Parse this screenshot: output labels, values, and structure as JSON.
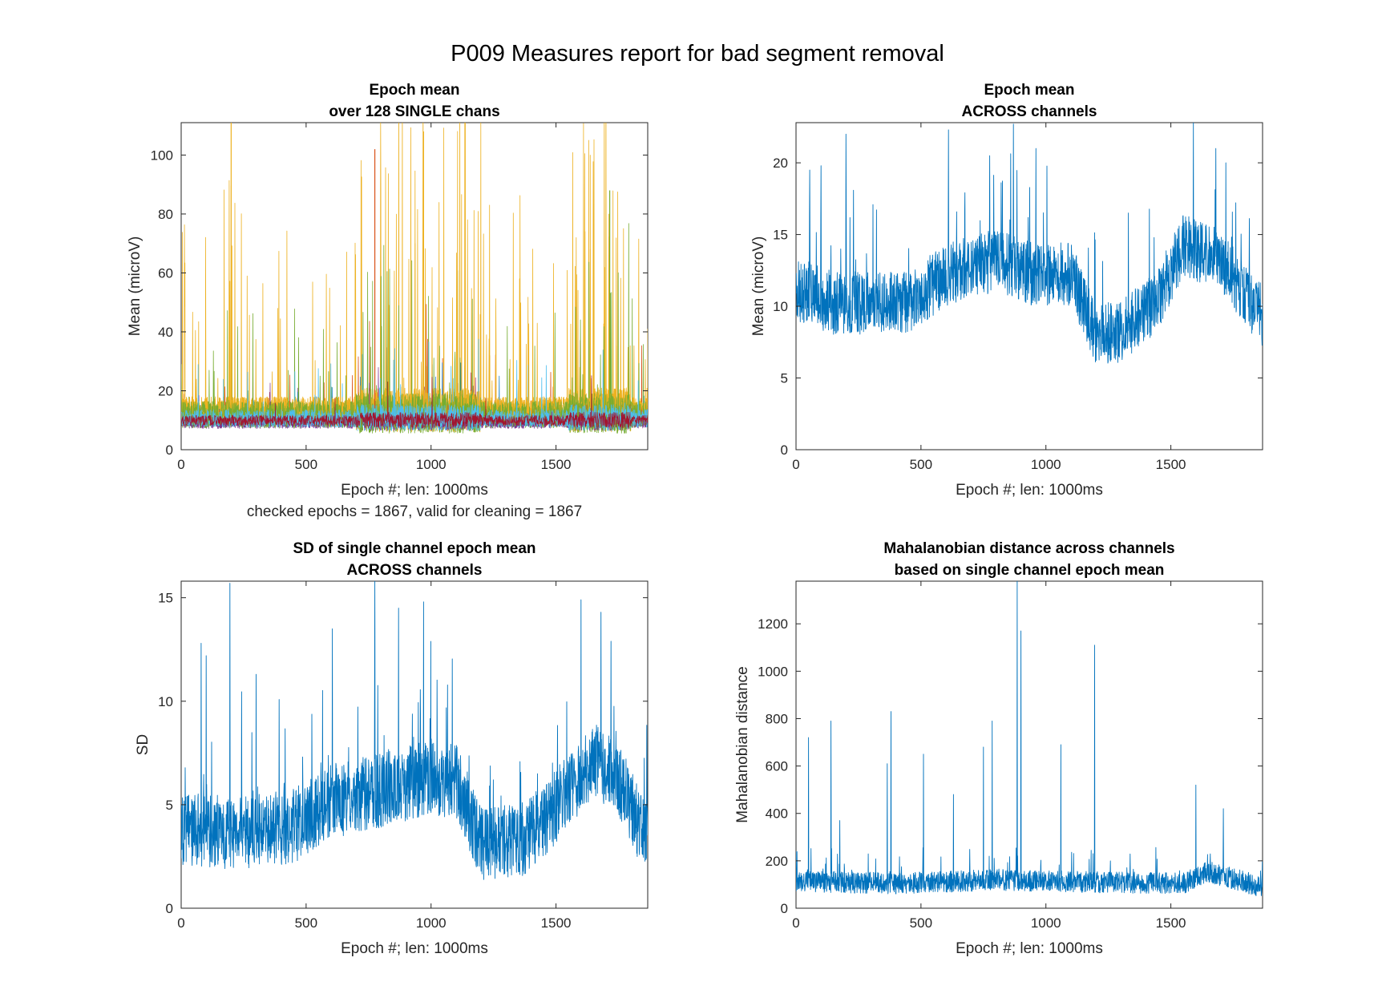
{
  "figure_title": "P009 Measures report for bad segment removal",
  "colors": {
    "series_blue": "#0072BD",
    "matlab_order": [
      "#0072BD",
      "#D95319",
      "#EDB120",
      "#7E2F8E",
      "#77AC30",
      "#4DBEEE",
      "#A2142F"
    ]
  },
  "chart_data": [
    {
      "type": "line",
      "id": "p1",
      "title": [
        "Epoch mean",
        "over 128 SINGLE chans"
      ],
      "xlabel": "Epoch #; len: 1000ms",
      "xlabel_note": "checked epochs = 1867, valid for cleaning = 1867",
      "ylabel": "Mean (microV)",
      "xlim": [
        0,
        1867
      ],
      "ylim": [
        0,
        111
      ],
      "xticks": [
        0,
        500,
        1000,
        1500
      ],
      "yticks": [
        0,
        20,
        40,
        60,
        80,
        100
      ],
      "n_epochs": 1867,
      "n_series": 128,
      "series_summary": {
        "typical_range": [
          5,
          20
        ],
        "peak_max": 111,
        "notable_peaks": [
          [
            200,
            111
          ],
          [
            775,
            102
          ],
          [
            970,
            108
          ],
          [
            1715,
            88
          ]
        ]
      }
    },
    {
      "type": "line",
      "id": "p2",
      "title": [
        "Epoch mean",
        "ACROSS channels"
      ],
      "xlabel": "Epoch #; len: 1000ms",
      "ylabel": "Mean (microV)",
      "xlim": [
        0,
        1867
      ],
      "ylim": [
        0,
        22.8
      ],
      "xticks": [
        0,
        500,
        1000,
        1500
      ],
      "yticks": [
        0,
        5,
        10,
        15,
        20
      ],
      "levels": [
        [
          0,
          11
        ],
        [
          150,
          10
        ],
        [
          300,
          10
        ],
        [
          450,
          10
        ],
        [
          600,
          12
        ],
        [
          800,
          13
        ],
        [
          950,
          12
        ],
        [
          1100,
          12
        ],
        [
          1200,
          8
        ],
        [
          1300,
          8
        ],
        [
          1440,
          10
        ],
        [
          1550,
          14
        ],
        [
          1700,
          13
        ],
        [
          1867,
          9
        ]
      ],
      "spread": 2.2,
      "peaks": [
        [
          55,
          19.5
        ],
        [
          100,
          19.8
        ],
        [
          200,
          22
        ],
        [
          610,
          22.3
        ],
        [
          775,
          20.5
        ],
        [
          870,
          22.7
        ],
        [
          960,
          21
        ],
        [
          1590,
          22.8
        ],
        [
          1680,
          21
        ],
        [
          1720,
          20
        ]
      ]
    },
    {
      "type": "line",
      "id": "p3",
      "title": [
        "SD of single channel epoch mean",
        "ACROSS channels"
      ],
      "xlabel": "Epoch #; len: 1000ms",
      "ylabel": "SD",
      "xlim": [
        0,
        1867
      ],
      "ylim": [
        0,
        15.8
      ],
      "xticks": [
        0,
        500,
        1000,
        1500
      ],
      "yticks": [
        0,
        5,
        10,
        15
      ],
      "levels": [
        [
          0,
          3.6
        ],
        [
          150,
          3.5
        ],
        [
          300,
          3.5
        ],
        [
          450,
          3.8
        ],
        [
          600,
          5
        ],
        [
          800,
          5.5
        ],
        [
          950,
          6
        ],
        [
          1100,
          6
        ],
        [
          1200,
          3
        ],
        [
          1350,
          3
        ],
        [
          1450,
          4
        ],
        [
          1650,
          7
        ],
        [
          1750,
          6
        ],
        [
          1867,
          3
        ]
      ],
      "spread": 1.8,
      "peaks": [
        [
          80,
          12.8
        ],
        [
          100,
          12.2
        ],
        [
          195,
          15.7
        ],
        [
          300,
          11.3
        ],
        [
          605,
          13.5
        ],
        [
          775,
          15.8
        ],
        [
          870,
          14.5
        ],
        [
          970,
          14.8
        ],
        [
          1600,
          14.9
        ],
        [
          1680,
          14.3
        ],
        [
          1720,
          12.9
        ]
      ]
    },
    {
      "type": "line",
      "id": "p4",
      "title": [
        "Mahalanobian distance across channels",
        "based on single channel epoch mean"
      ],
      "xlabel": "Epoch #; len: 1000ms",
      "ylabel": "Mahalanobian distance",
      "xlim": [
        0,
        1867
      ],
      "ylim": [
        0,
        1380
      ],
      "xticks": [
        0,
        500,
        1000,
        1500
      ],
      "yticks": [
        0,
        200,
        400,
        600,
        800,
        1000,
        1200
      ],
      "levels": [
        [
          0,
          110
        ],
        [
          400,
          100
        ],
        [
          800,
          115
        ],
        [
          1200,
          105
        ],
        [
          1550,
          100
        ],
        [
          1650,
          150
        ],
        [
          1750,
          120
        ],
        [
          1867,
          85
        ]
      ],
      "spread": 45,
      "peaks": [
        [
          50,
          720
        ],
        [
          140,
          790
        ],
        [
          175,
          370
        ],
        [
          380,
          830
        ],
        [
          365,
          610
        ],
        [
          510,
          650
        ],
        [
          630,
          480
        ],
        [
          750,
          680
        ],
        [
          785,
          790
        ],
        [
          885,
          1380
        ],
        [
          900,
          1170
        ],
        [
          1060,
          690
        ],
        [
          1195,
          1110
        ],
        [
          1600,
          520
        ],
        [
          1710,
          420
        ]
      ]
    }
  ]
}
